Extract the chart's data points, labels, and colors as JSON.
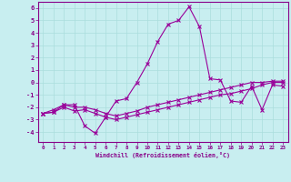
{
  "xlabel": "Windchill (Refroidissement éolien,°C)",
  "background_color": "#c8eef0",
  "line_color": "#990099",
  "x": [
    0,
    1,
    2,
    3,
    4,
    5,
    6,
    7,
    8,
    9,
    10,
    11,
    12,
    13,
    14,
    15,
    16,
    17,
    18,
    19,
    20,
    21,
    22,
    23
  ],
  "line1": [
    -2.5,
    -2.4,
    -1.8,
    -1.8,
    -3.5,
    -4.1,
    -2.8,
    -1.5,
    -1.3,
    0.0,
    1.5,
    3.3,
    4.7,
    5.0,
    6.1,
    4.5,
    0.3,
    0.2,
    -1.5,
    -1.6,
    -0.3,
    -2.2,
    -0.2,
    -0.3
  ],
  "line2": [
    -2.5,
    -2.2,
    -1.8,
    -2.0,
    -2.0,
    -2.2,
    -2.5,
    -2.7,
    -2.5,
    -2.3,
    -2.0,
    -1.8,
    -1.6,
    -1.4,
    -1.2,
    -1.0,
    -0.8,
    -0.6,
    -0.4,
    -0.2,
    0.0,
    0.0,
    0.1,
    0.1
  ],
  "line3": [
    -2.5,
    -2.4,
    -2.0,
    -2.3,
    -2.2,
    -2.5,
    -2.8,
    -3.0,
    -2.8,
    -2.6,
    -2.4,
    -2.2,
    -2.0,
    -1.8,
    -1.6,
    -1.4,
    -1.2,
    -1.0,
    -0.9,
    -0.7,
    -0.5,
    -0.2,
    0.0,
    0.0
  ],
  "ylim": [
    -4.8,
    6.5
  ],
  "xlim": [
    -0.5,
    23.5
  ],
  "yticks": [
    -4,
    -3,
    -2,
    -1,
    0,
    1,
    2,
    3,
    4,
    5,
    6
  ],
  "xticks": [
    0,
    1,
    2,
    3,
    4,
    5,
    6,
    7,
    8,
    9,
    10,
    11,
    12,
    13,
    14,
    15,
    16,
    17,
    18,
    19,
    20,
    21,
    22,
    23
  ],
  "grid_color": "#aadddd",
  "tick_color": "#880088",
  "spine_color": "#880088"
}
